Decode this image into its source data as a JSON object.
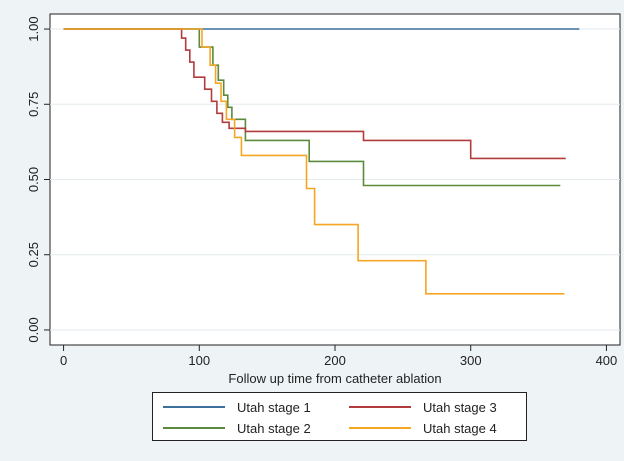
{
  "chart_data": {
    "type": "line",
    "title": "",
    "xlabel": "Follow up time from catheter ablation",
    "ylabel": "",
    "xlim": [
      -10,
      410
    ],
    "ylim": [
      -0.05,
      1.05
    ],
    "xticks": [
      0,
      100,
      200,
      300,
      400
    ],
    "xtick_labels": [
      "0",
      "100",
      "200",
      "300",
      "400"
    ],
    "yticks": [
      0,
      0.25,
      0.5,
      0.75,
      1
    ],
    "ytick_labels": [
      "0.00",
      "0.25",
      "0.50",
      "0.75",
      "1.00"
    ],
    "grid": "horizontal",
    "legend_position": "bottom",
    "series": [
      {
        "name": "Utah stage 1",
        "color": "#3c6e9e",
        "points": [
          [
            0,
            1.0
          ],
          [
            380,
            1.0
          ]
        ]
      },
      {
        "name": "Utah stage 2",
        "color": "#5b8a3c",
        "points": [
          [
            0,
            1.0
          ],
          [
            100,
            1.0
          ],
          [
            100,
            0.94
          ],
          [
            110,
            0.94
          ],
          [
            110,
            0.88
          ],
          [
            114,
            0.88
          ],
          [
            114,
            0.83
          ],
          [
            118,
            0.83
          ],
          [
            118,
            0.78
          ],
          [
            121,
            0.78
          ],
          [
            121,
            0.74
          ],
          [
            124,
            0.74
          ],
          [
            124,
            0.7
          ],
          [
            134,
            0.7
          ],
          [
            134,
            0.63
          ],
          [
            181,
            0.63
          ],
          [
            181,
            0.56
          ],
          [
            221,
            0.56
          ],
          [
            221,
            0.48
          ],
          [
            366,
            0.48
          ]
        ]
      },
      {
        "name": "Utah stage 3",
        "color": "#b13c3c",
        "points": [
          [
            0,
            1.0
          ],
          [
            87,
            1.0
          ],
          [
            87,
            0.97
          ],
          [
            90,
            0.97
          ],
          [
            90,
            0.93
          ],
          [
            93,
            0.93
          ],
          [
            93,
            0.89
          ],
          [
            96,
            0.89
          ],
          [
            96,
            0.84
          ],
          [
            104,
            0.84
          ],
          [
            104,
            0.8
          ],
          [
            109,
            0.8
          ],
          [
            109,
            0.76
          ],
          [
            113,
            0.76
          ],
          [
            113,
            0.72
          ],
          [
            117,
            0.72
          ],
          [
            117,
            0.69
          ],
          [
            122,
            0.69
          ],
          [
            122,
            0.67
          ],
          [
            134,
            0.67
          ],
          [
            134,
            0.66
          ],
          [
            221,
            0.66
          ],
          [
            221,
            0.63
          ],
          [
            300,
            0.63
          ],
          [
            300,
            0.57
          ],
          [
            370,
            0.57
          ]
        ]
      },
      {
        "name": "Utah stage 4",
        "color": "#f5a623",
        "points": [
          [
            0,
            1.0
          ],
          [
            102,
            1.0
          ],
          [
            102,
            0.94
          ],
          [
            108,
            0.94
          ],
          [
            108,
            0.88
          ],
          [
            112,
            0.88
          ],
          [
            112,
            0.82
          ],
          [
            116,
            0.82
          ],
          [
            116,
            0.76
          ],
          [
            120,
            0.76
          ],
          [
            120,
            0.7
          ],
          [
            126,
            0.7
          ],
          [
            126,
            0.64
          ],
          [
            131,
            0.64
          ],
          [
            131,
            0.58
          ],
          [
            179,
            0.58
          ],
          [
            179,
            0.47
          ],
          [
            185,
            0.47
          ],
          [
            185,
            0.35
          ],
          [
            217,
            0.35
          ],
          [
            217,
            0.23
          ],
          [
            267,
            0.23
          ],
          [
            267,
            0.12
          ],
          [
            369,
            0.12
          ]
        ]
      }
    ]
  },
  "legend": {
    "items": [
      {
        "label": "Utah stage 1",
        "color": "#3c6e9e"
      },
      {
        "label": "Utah stage 3",
        "color": "#b13c3c"
      },
      {
        "label": "Utah stage 2",
        "color": "#5b8a3c"
      },
      {
        "label": "Utah stage 4",
        "color": "#f5a623"
      }
    ]
  }
}
